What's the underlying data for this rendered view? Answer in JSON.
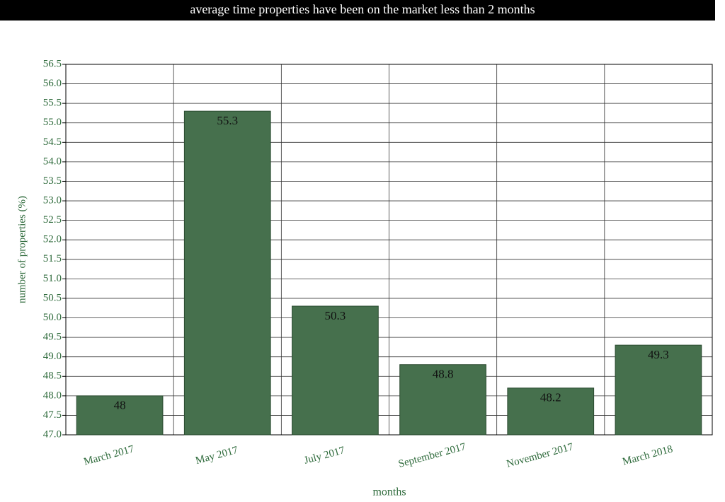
{
  "chart_data": {
    "type": "bar",
    "title": "average time properties have been on the market less than 2 months",
    "x_label": "months",
    "y_label": "number of properties (%)",
    "categories": [
      "March 2017",
      "May 2017",
      "July 2017",
      "September 2017",
      "November 2017",
      "March 2018"
    ],
    "values": [
      48,
      55.3,
      50.3,
      48.8,
      48.2,
      49.3
    ],
    "color": "#46704d",
    "ylim": [
      47,
      56.5
    ],
    "yticks": [
      {
        "value": 47,
        "label": "47.0"
      },
      47.5,
      {
        "value": 48,
        "label": "48.0"
      },
      48.5,
      {
        "value": 49,
        "label": "49.0"
      },
      49.5,
      {
        "value": 50,
        "label": "50.0"
      },
      50.5,
      {
        "value": 51,
        "label": "51.0"
      },
      51.5,
      {
        "value": 52,
        "label": "52.0"
      },
      52.5,
      {
        "value": 53,
        "label": "53.0"
      },
      53.5,
      {
        "value": 54,
        "label": "54.0"
      },
      54.5,
      {
        "value": 55,
        "label": "55.0"
      },
      55.5,
      {
        "value": 56,
        "label": "56.0"
      },
      56.5
    ],
    "grid": true
  }
}
